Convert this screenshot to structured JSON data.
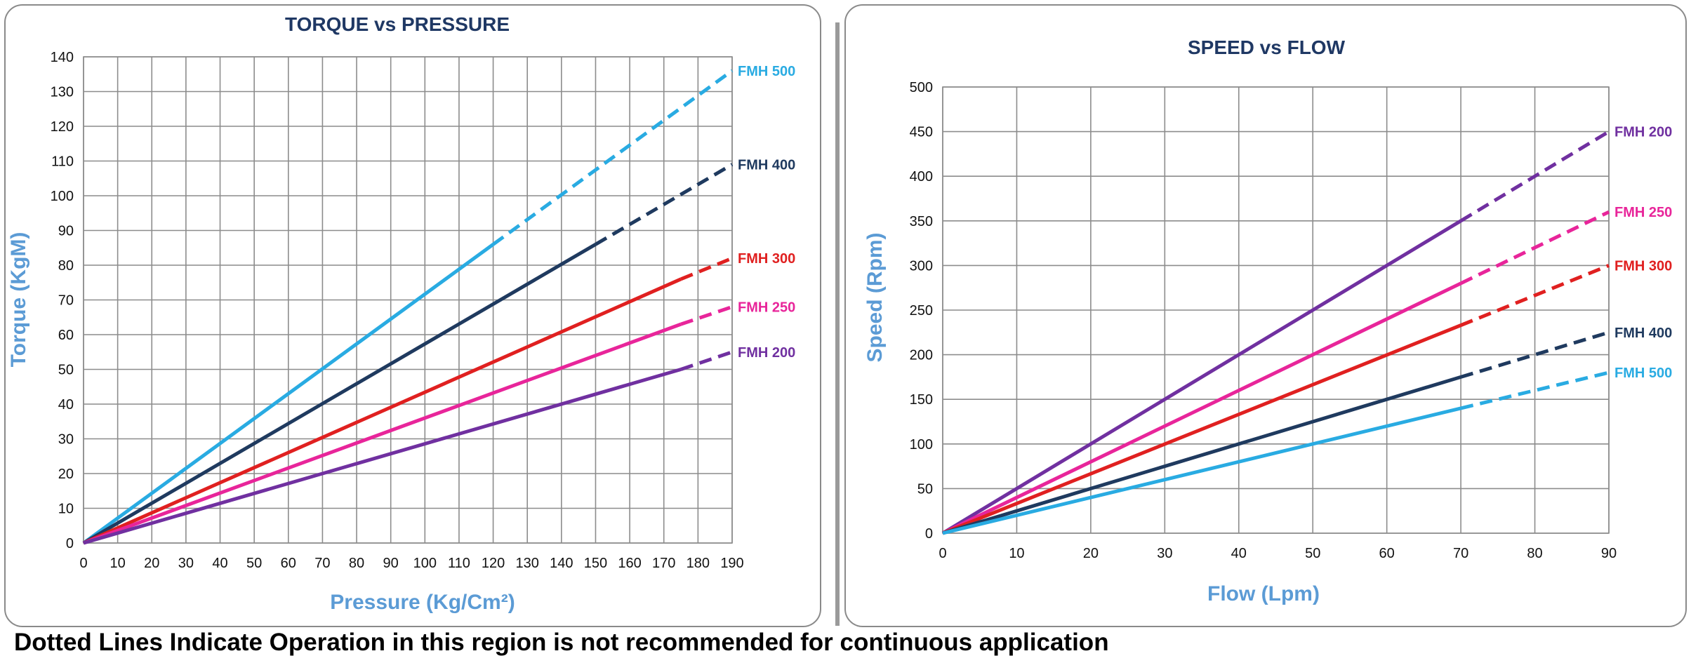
{
  "footnote": "Dotted Lines Indicate Operation in this region is not recommended for continuous application",
  "chart_data": [
    {
      "type": "line",
      "title": "TORQUE vs PRESSURE",
      "xlabel": "Pressure (Kg/Cm²)",
      "ylabel": "Torque (KgM)",
      "xlim": [
        0,
        190
      ],
      "ylim": [
        0,
        140
      ],
      "xticks": [
        0,
        10,
        20,
        30,
        40,
        50,
        60,
        70,
        80,
        90,
        100,
        110,
        120,
        130,
        140,
        150,
        160,
        170,
        180,
        190
      ],
      "yticks": [
        0,
        10,
        20,
        30,
        40,
        50,
        60,
        70,
        80,
        90,
        100,
        110,
        120,
        130,
        140
      ],
      "grid": true,
      "title_color": "#1f3864",
      "axis_label_color": "#5b9bd5",
      "series": [
        {
          "name": "FMH 500",
          "color": "#29abe2",
          "x": [
            0,
            120,
            190
          ],
          "y": [
            0,
            86,
            136
          ],
          "dashed_from_x": 120
        },
        {
          "name": "FMH 400",
          "color": "#1f3a5f",
          "x": [
            0,
            150,
            190
          ],
          "y": [
            0,
            86,
            109
          ],
          "dashed_from_x": 150
        },
        {
          "name": "FMH 300",
          "color": "#e02020",
          "x": [
            0,
            175,
            190
          ],
          "y": [
            0,
            76,
            82
          ],
          "dashed_from_x": 175
        },
        {
          "name": "FMH 250",
          "color": "#e8259a",
          "x": [
            0,
            175,
            190
          ],
          "y": [
            0,
            63,
            68
          ],
          "dashed_from_x": 175
        },
        {
          "name": "FMH 200",
          "color": "#7030a0",
          "x": [
            0,
            175,
            190
          ],
          "y": [
            0,
            50,
            55
          ],
          "dashed_from_x": 175
        }
      ]
    },
    {
      "type": "line",
      "title": "SPEED vs FLOW",
      "xlabel": "Flow (Lpm)",
      "ylabel": "Speed (Rpm)",
      "xlim": [
        0,
        90
      ],
      "ylim": [
        0,
        500
      ],
      "xticks": [
        0,
        10,
        20,
        30,
        40,
        50,
        60,
        70,
        80,
        90
      ],
      "yticks": [
        0,
        50,
        100,
        150,
        200,
        250,
        300,
        350,
        400,
        450,
        500
      ],
      "grid": true,
      "title_color": "#1f3864",
      "axis_label_color": "#5b9bd5",
      "series": [
        {
          "name": "FMH 200",
          "color": "#7030a0",
          "x": [
            0,
            70,
            90
          ],
          "y": [
            0,
            350,
            450
          ],
          "dashed_from_x": 70
        },
        {
          "name": "FMH 250",
          "color": "#e8259a",
          "x": [
            0,
            70,
            90
          ],
          "y": [
            0,
            280,
            360
          ],
          "dashed_from_x": 70
        },
        {
          "name": "FMH 300",
          "color": "#e02020",
          "x": [
            0,
            70,
            90
          ],
          "y": [
            0,
            233,
            300
          ],
          "dashed_from_x": 70
        },
        {
          "name": "FMH 400",
          "color": "#1f3a5f",
          "x": [
            0,
            70,
            90
          ],
          "y": [
            0,
            175,
            225
          ],
          "dashed_from_x": 70
        },
        {
          "name": "FMH 500",
          "color": "#29abe2",
          "x": [
            0,
            70,
            90
          ],
          "y": [
            0,
            140,
            180
          ],
          "dashed_from_x": 70
        }
      ]
    }
  ]
}
